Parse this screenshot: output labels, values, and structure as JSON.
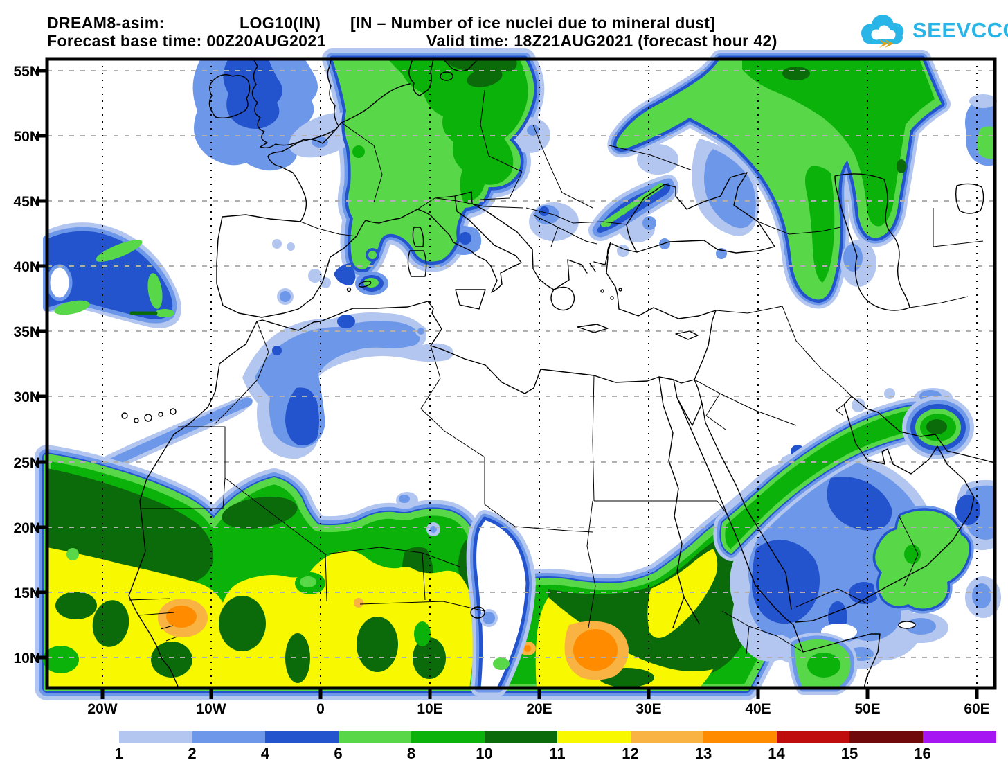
{
  "header": {
    "model": "DREAM8-asim:",
    "variable": "LOG10(IN)",
    "description": "[IN – Number of ice nuclei due to mineral dust]",
    "base_time": "Forecast base time: 00Z20AUG2021",
    "valid_time": "Valid time: 18Z21AUG2021 (forecast hour 42)"
  },
  "logo": {
    "text": "SEEVCCC",
    "color": "#29b5e8",
    "cloud_color": "#29b5e8",
    "bolt_color": "#d9a31e"
  },
  "axes": {
    "lat_labels": [
      "55N",
      "50N",
      "45N",
      "40N",
      "35N",
      "30N",
      "25N",
      "20N",
      "15N",
      "10N"
    ],
    "lon_labels": [
      "20W",
      "10W",
      "0",
      "10E",
      "20E",
      "30E",
      "40E",
      "50E",
      "60E"
    ]
  },
  "legend": {
    "labels": [
      "1",
      "2",
      "4",
      "6",
      "8",
      "10",
      "11",
      "12",
      "13",
      "14",
      "15",
      "16"
    ],
    "colors": [
      "#b3c6f0",
      "#6d97e8",
      "#2353cd",
      "#58d848",
      "#0ab20a",
      "#0b6b0b",
      "#f8f800",
      "#f9b342",
      "#ff8c00",
      "#bf0d0d",
      "#700a0a",
      "#a516f2"
    ]
  },
  "palette": {
    "c1": "#b3c6f0",
    "c2": "#6d97e8",
    "c4": "#2353cd",
    "c6": "#58d848",
    "c8": "#0ab20a",
    "c10": "#0b6b0b",
    "c11": "#f8f800",
    "c12": "#f9b342",
    "c13": "#ff8c00",
    "c14": "#bf0d0d",
    "c15": "#700a0a",
    "c16": "#a516f2",
    "white": "#ffffff",
    "grid_gray": "#b0b0b0",
    "line_black": "#000000"
  }
}
